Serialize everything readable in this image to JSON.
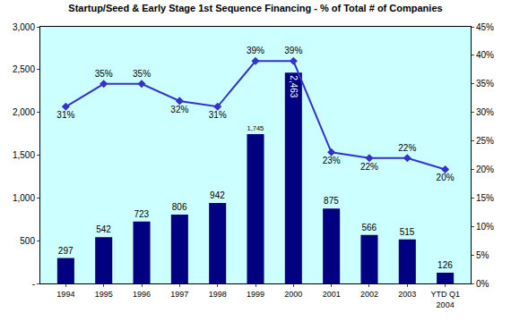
{
  "chart_data": {
    "type": "bar",
    "title": "Startup/Seed & Early Stage 1st Sequence Financing - % of Total # of Companies",
    "categories": [
      "1994",
      "1995",
      "1996",
      "1997",
      "1998",
      "1999",
      "2000",
      "2001",
      "2002",
      "2003",
      "YTD Q1 2004"
    ],
    "series": [
      {
        "type": "bar",
        "color": "#000080",
        "values": [
          297,
          542,
          723,
          806,
          942,
          1745,
          2463,
          875,
          566,
          515,
          126
        ],
        "value_labels": [
          "297",
          "542",
          "723",
          "806",
          "942",
          "1,745",
          "2,463",
          "875",
          "566",
          "515",
          "126"
        ]
      },
      {
        "type": "line",
        "axis": "y2",
        "color": "#3333CC",
        "marker": "diamond",
        "line_style": "solid",
        "values": [
          31,
          35,
          35,
          32,
          31,
          39,
          39,
          23,
          22,
          22,
          20
        ],
        "value_labels": [
          "31%",
          "35%",
          "35%",
          "32%",
          "31%",
          "39%",
          "39%",
          "23%",
          "22%",
          "22%",
          "20%"
        ]
      }
    ],
    "ylim": [
      0,
      3000
    ],
    "yticks": [
      {
        "value": 0,
        "label": "-"
      },
      500,
      {
        "value": 1000,
        "label": "1,000"
      },
      {
        "value": 1500,
        "label": "1,500"
      },
      {
        "value": 2000,
        "label": "2,000"
      },
      {
        "value": 2500,
        "label": "2,500"
      },
      {
        "value": 3000,
        "label": "3,000"
      }
    ],
    "y2lim": [
      0,
      45
    ],
    "y2ticks": [
      {
        "value": 0,
        "label": "0%"
      },
      {
        "value": 5,
        "label": "5%"
      },
      {
        "value": 10,
        "label": "10%"
      },
      {
        "value": 15,
        "label": "15%"
      },
      {
        "value": 20,
        "label": "20%"
      },
      {
        "value": 25,
        "label": "25%"
      },
      {
        "value": 30,
        "label": "30%"
      },
      {
        "value": 35,
        "label": "35%"
      },
      {
        "value": 40,
        "label": "40%"
      },
      {
        "value": 45,
        "label": "45%"
      }
    ],
    "data_labels": true,
    "grid": false
  }
}
